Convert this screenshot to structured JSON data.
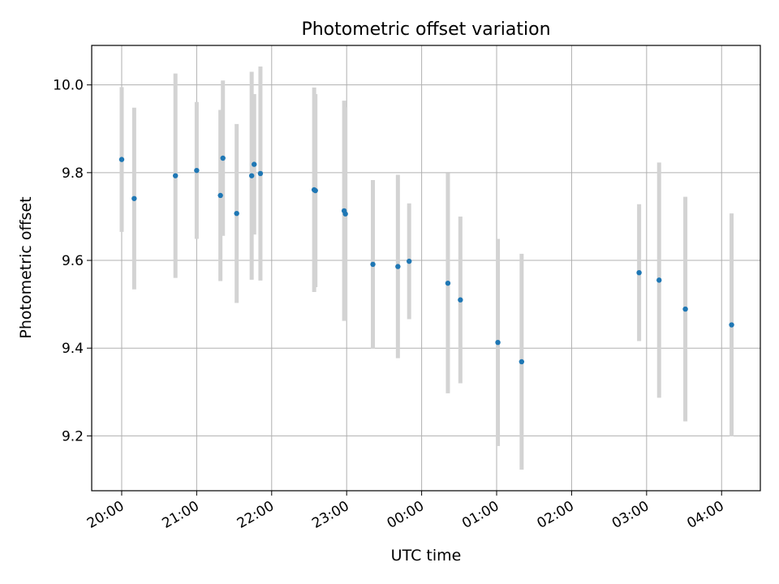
{
  "chart_data": {
    "type": "scatter",
    "title": "Photometric offset variation",
    "xlabel": "UTC time",
    "ylabel": "Photometric offset",
    "x_tick_labels": [
      "20:00",
      "21:00",
      "22:00",
      "23:00",
      "00:00",
      "01:00",
      "02:00",
      "03:00",
      "04:00"
    ],
    "y_tick_labels": [
      "9.2",
      "9.4",
      "9.6",
      "9.8",
      "10.0"
    ],
    "ylim": [
      9.075,
      10.09
    ],
    "grid": true,
    "colors": {
      "point": "#1f77b4",
      "errorbar": "#d3d3d3",
      "grid": "#b0b0b0"
    },
    "series": [
      {
        "points": [
          {
            "t": "20:00",
            "y": 9.83,
            "err": 0.165
          },
          {
            "t": "20:10",
            "y": 9.741,
            "err": 0.207
          },
          {
            "t": "20:43",
            "y": 9.793,
            "err": 0.233
          },
          {
            "t": "21:00",
            "y": 9.805,
            "err": 0.156
          },
          {
            "t": "21:19",
            "y": 9.748,
            "err": 0.195
          },
          {
            "t": "21:21",
            "y": 9.833,
            "err": 0.177
          },
          {
            "t": "21:32",
            "y": 9.707,
            "err": 0.204
          },
          {
            "t": "21:44",
            "y": 9.793,
            "err": 0.237
          },
          {
            "t": "21:46",
            "y": 9.819,
            "err": 0.16
          },
          {
            "t": "21:51",
            "y": 9.798,
            "err": 0.244
          },
          {
            "t": "22:34",
            "y": 9.761,
            "err": 0.233
          },
          {
            "t": "22:35",
            "y": 9.759,
            "err": 0.22
          },
          {
            "t": "22:58",
            "y": 9.713,
            "err": 0.251
          },
          {
            "t": "22:59",
            "y": 9.706,
            "err": 0.243
          },
          {
            "t": "23:21",
            "y": 9.591,
            "err": 0.192
          },
          {
            "t": "23:41",
            "y": 9.586,
            "err": 0.209
          },
          {
            "t": "23:50",
            "y": 9.598,
            "err": 0.132
          },
          {
            "t": "00:21",
            "y": 9.548,
            "err": 0.251
          },
          {
            "t": "00:31",
            "y": 9.51,
            "err": 0.19
          },
          {
            "t": "01:01",
            "y": 9.413,
            "err": 0.236
          },
          {
            "t": "01:20",
            "y": 9.369,
            "err": 0.246
          },
          {
            "t": "02:54",
            "y": 9.572,
            "err": 0.156
          },
          {
            "t": "03:10",
            "y": 9.555,
            "err": 0.268
          },
          {
            "t": "03:31",
            "y": 9.489,
            "err": 0.256
          },
          {
            "t": "04:08",
            "y": 9.453,
            "err": 0.254
          }
        ]
      }
    ]
  }
}
